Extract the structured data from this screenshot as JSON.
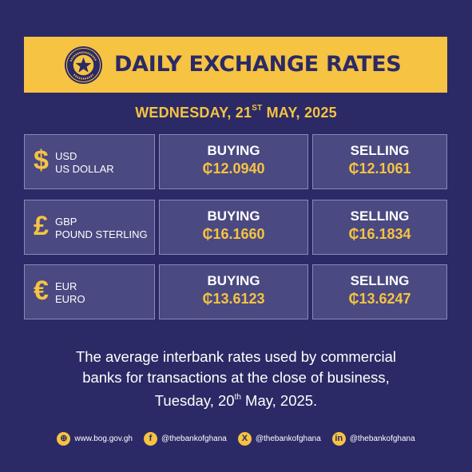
{
  "banner": {
    "title": "DAILY EXCHANGE RATES",
    "seal_text_top": "BANK OF GHANA",
    "seal_text_bottom": "EST. 1957"
  },
  "date": {
    "prefix": "WEDNESDAY, 21",
    "ordinal": "ST",
    "suffix": " MAY, 2025"
  },
  "rates": [
    {
      "symbol": "$",
      "code": "USD",
      "name": "US DOLLAR",
      "buying_label": "BUYING",
      "buying": "₵12.0940",
      "selling_label": "SELLING",
      "selling": "₵12.1061"
    },
    {
      "symbol": "£",
      "code": "GBP",
      "name": "POUND STERLING",
      "buying_label": "BUYING",
      "buying": "₵16.1660",
      "selling_label": "SELLING",
      "selling": "₵16.1834"
    },
    {
      "symbol": "€",
      "code": "EUR",
      "name": "EURO",
      "buying_label": "BUYING",
      "buying": "₵13.6123",
      "selling_label": "SELLING",
      "selling": "₵13.6247"
    }
  ],
  "note": {
    "line1": "The average interbank rates used by commercial",
    "line2": "banks for transactions at the close of business,",
    "line3_prefix": "Tuesday, 20",
    "line3_ordinal": "th",
    "line3_suffix": " May, 2025."
  },
  "footer": [
    {
      "icon": "globe-icon",
      "glyph": "⊕",
      "text": "www.bog.gov.gh"
    },
    {
      "icon": "facebook-icon",
      "glyph": "f",
      "text": "@thebankofghana"
    },
    {
      "icon": "x-icon",
      "glyph": "X",
      "text": "@thebankofghana"
    },
    {
      "icon": "linkedin-icon",
      "glyph": "in",
      "text": "@thebankofghana"
    }
  ],
  "colors": {
    "background": "#2b2a66",
    "accent": "#f6c342",
    "cell": "#4a4981"
  }
}
